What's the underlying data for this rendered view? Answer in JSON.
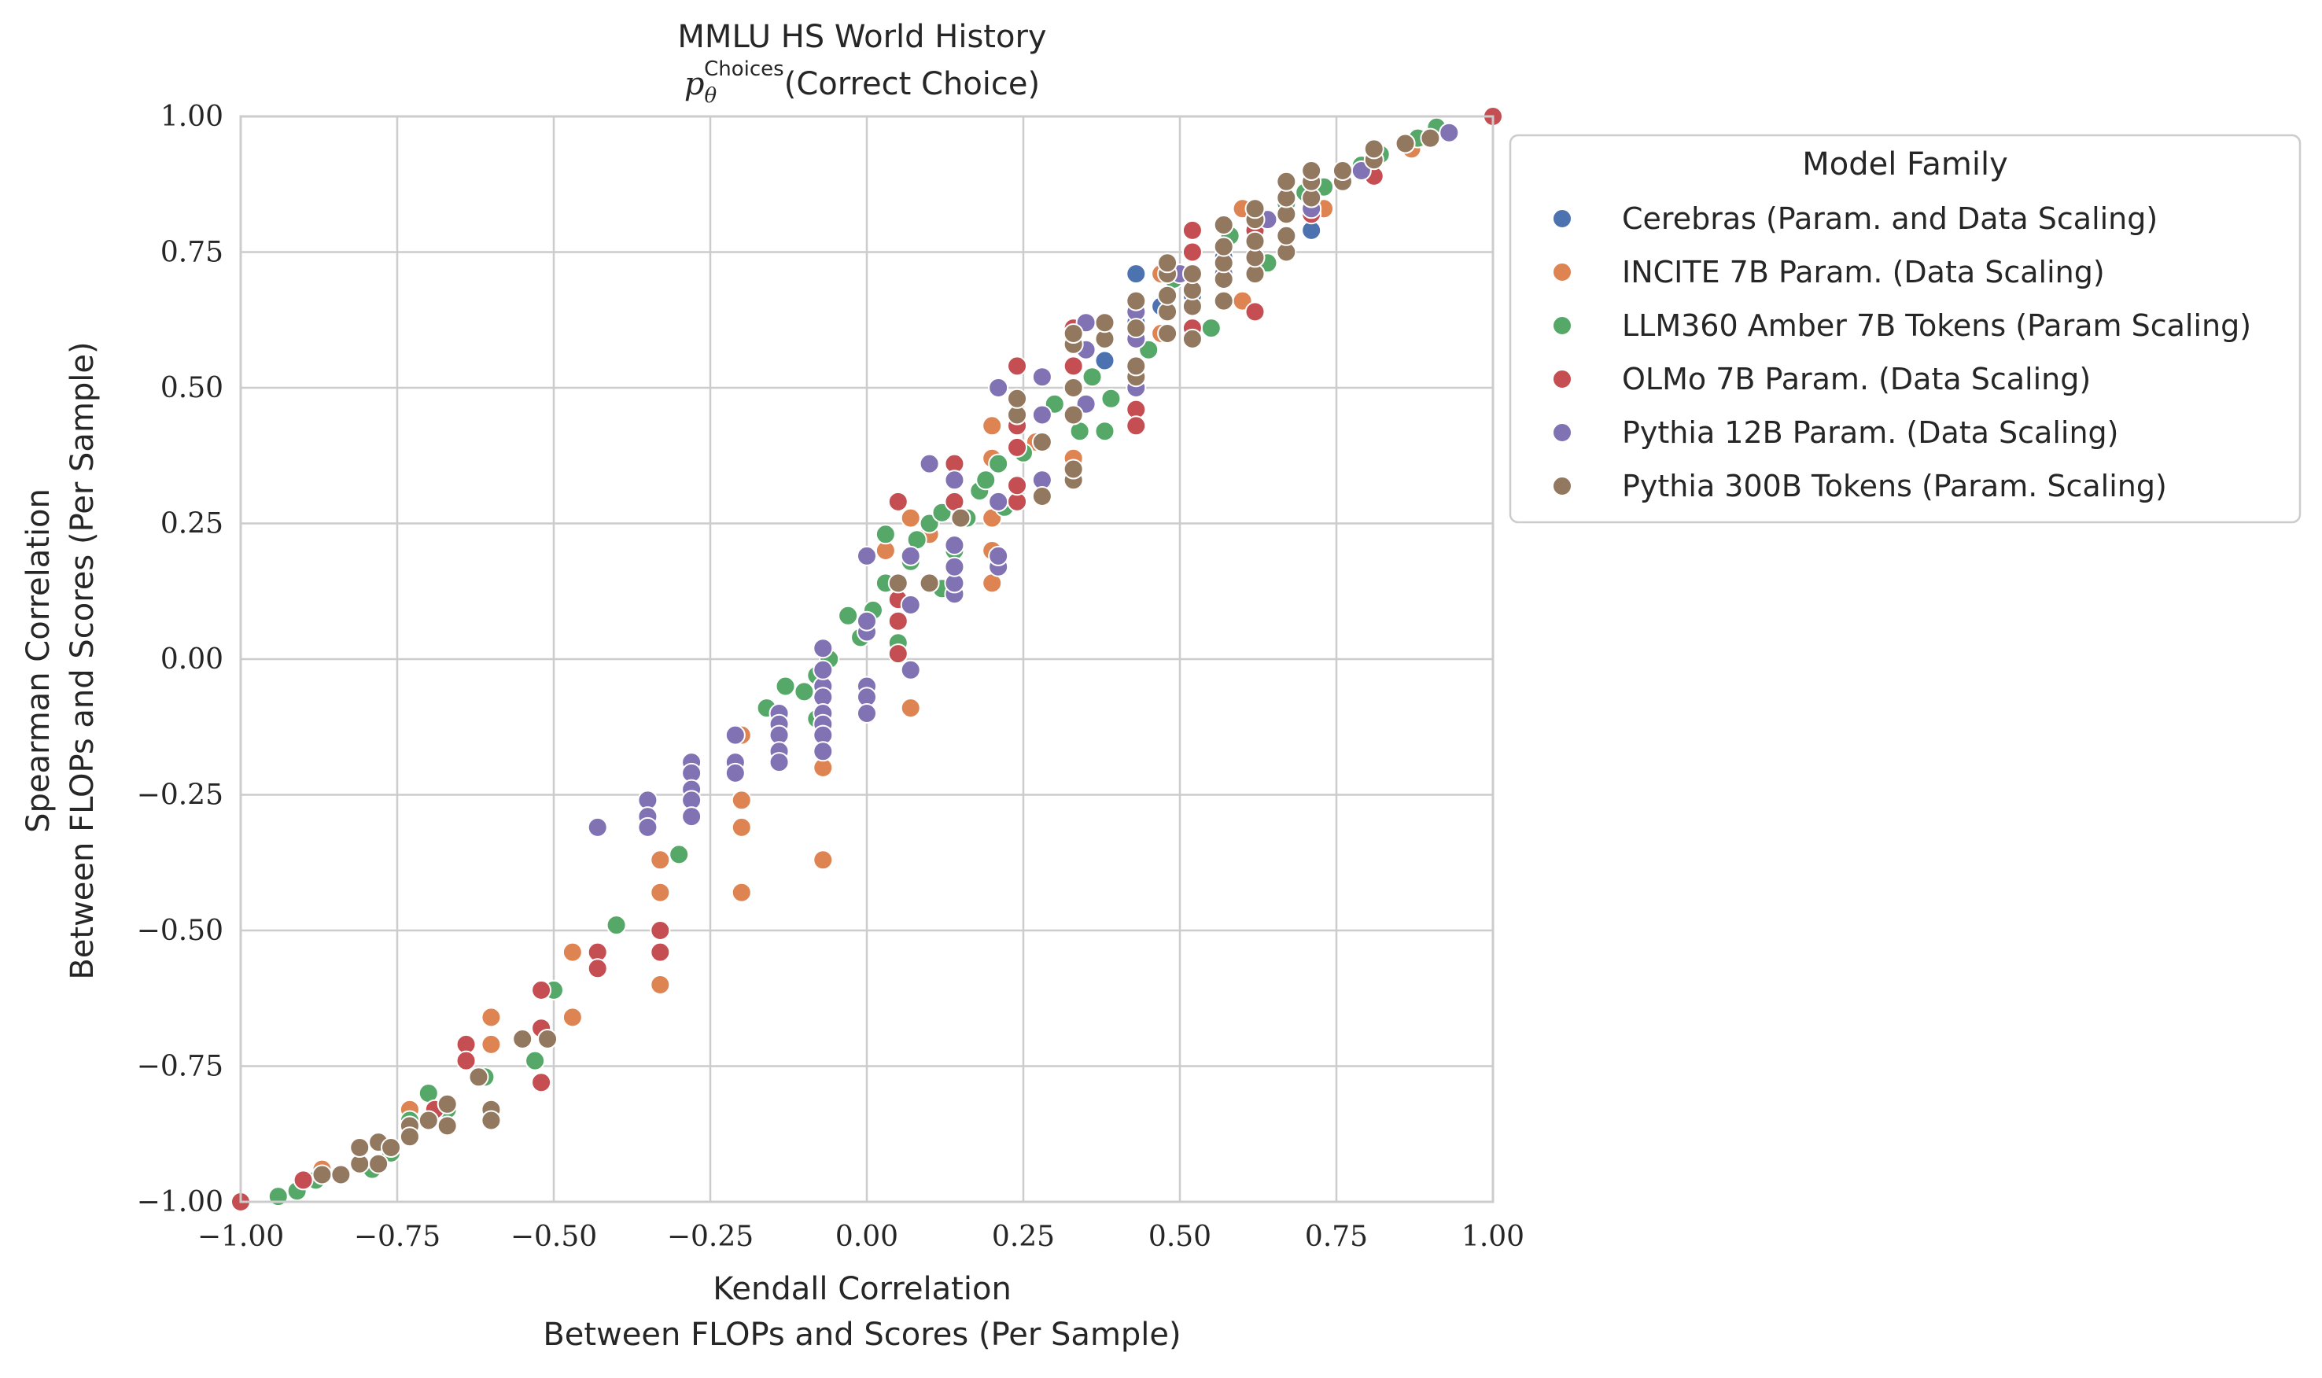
{
  "chart_data": {
    "type": "scatter",
    "title": "MMLU HS World History",
    "subtitle_math": "p",
    "subtitle_sub": "θ",
    "subtitle_sup": "Choices",
    "subtitle_text": "(Correct Choice)",
    "xlabel": [
      "Kendall Correlation",
      "Between FLOPs and Scores (Per Sample)"
    ],
    "ylabel": [
      "Spearman Correlation",
      "Between FLOPs and Scores (Per Sample)"
    ],
    "xlim": [
      -1.0,
      1.0
    ],
    "ylim": [
      -1.0,
      1.0
    ],
    "x_ticks": [
      -1.0,
      -0.75,
      -0.5,
      -0.25,
      0.0,
      0.25,
      0.5,
      0.75,
      1.0
    ],
    "y_ticks": [
      -1.0,
      -0.75,
      -0.5,
      -0.25,
      0.0,
      0.25,
      0.5,
      0.75,
      1.0
    ],
    "x_tick_labels": [
      "−1.00",
      "−0.75",
      "−0.50",
      "−0.25",
      "0.00",
      "0.25",
      "0.50",
      "0.75",
      "1.00"
    ],
    "y_tick_labels": [
      "−1.00",
      "−0.75",
      "−0.50",
      "−0.25",
      "0.00",
      "0.25",
      "0.50",
      "0.75",
      "1.00"
    ],
    "grid": true,
    "legend": {
      "title": "Model Family",
      "placement": "outside-right-top"
    },
    "series": [
      {
        "name": "Cerebras (Param. and Data Scaling)",
        "color": "#4c72b0",
        "points": [
          [
            0.43,
            0.71
          ],
          [
            0.71,
            0.79
          ],
          [
            0.47,
            0.65
          ],
          [
            0.57,
            0.74
          ],
          [
            0.62,
            0.8
          ],
          [
            0.43,
            0.62
          ],
          [
            0.52,
            0.67
          ],
          [
            0.67,
            0.83
          ],
          [
            0.38,
            0.55
          ],
          [
            0.76,
            0.88
          ]
        ]
      },
      {
        "name": "INCITE 7B Param. (Data Scaling)",
        "color": "#dd8452",
        "points": [
          [
            -0.6,
            -0.66
          ],
          [
            -0.6,
            -0.71
          ],
          [
            -0.47,
            -0.54
          ],
          [
            -0.47,
            -0.66
          ],
          [
            -0.33,
            -0.37
          ],
          [
            -0.33,
            -0.43
          ],
          [
            -0.33,
            -0.6
          ],
          [
            -0.2,
            -0.26
          ],
          [
            -0.2,
            -0.31
          ],
          [
            -0.2,
            -0.43
          ],
          [
            -0.2,
            -0.14
          ],
          [
            -0.07,
            -0.37
          ],
          [
            -0.07,
            -0.2
          ],
          [
            -0.07,
            -0.14
          ],
          [
            0.07,
            0.26
          ],
          [
            0.07,
            -0.09
          ],
          [
            0.2,
            0.14
          ],
          [
            0.2,
            0.2
          ],
          [
            0.2,
            0.26
          ],
          [
            0.2,
            0.37
          ],
          [
            0.2,
            0.43
          ],
          [
            0.33,
            0.37
          ],
          [
            0.33,
            0.54
          ],
          [
            0.47,
            0.6
          ],
          [
            0.47,
            0.71
          ],
          [
            0.6,
            0.66
          ],
          [
            0.6,
            0.83
          ],
          [
            0.73,
            0.83
          ],
          [
            0.87,
            0.94
          ],
          [
            -0.87,
            -0.94
          ],
          [
            -0.73,
            -0.83
          ],
          [
            0.03,
            0.2
          ],
          [
            0.1,
            0.23
          ],
          [
            0.27,
            0.4
          ]
        ]
      },
      {
        "name": "LLM360 Amber 7B Tokens (Param Scaling)",
        "color": "#55a868",
        "points": [
          [
            -0.94,
            -0.99
          ],
          [
            -0.91,
            -0.98
          ],
          [
            -0.88,
            -0.96
          ],
          [
            -0.79,
            -0.94
          ],
          [
            -0.76,
            -0.91
          ],
          [
            -0.73,
            -0.85
          ],
          [
            -0.7,
            -0.8
          ],
          [
            -0.67,
            -0.83
          ],
          [
            -0.61,
            -0.77
          ],
          [
            -0.53,
            -0.74
          ],
          [
            -0.5,
            -0.61
          ],
          [
            -0.4,
            -0.49
          ],
          [
            -0.3,
            -0.36
          ],
          [
            -0.16,
            -0.09
          ],
          [
            -0.13,
            -0.05
          ],
          [
            -0.1,
            -0.06
          ],
          [
            -0.08,
            -0.03
          ],
          [
            -0.08,
            -0.11
          ],
          [
            -0.06,
            0.0
          ],
          [
            -0.03,
            0.08
          ],
          [
            -0.01,
            0.04
          ],
          [
            0.01,
            0.09
          ],
          [
            0.03,
            0.14
          ],
          [
            0.03,
            0.23
          ],
          [
            0.05,
            0.03
          ],
          [
            0.07,
            0.18
          ],
          [
            0.08,
            0.22
          ],
          [
            0.1,
            0.25
          ],
          [
            0.12,
            0.27
          ],
          [
            0.12,
            0.13
          ],
          [
            0.14,
            0.2
          ],
          [
            0.16,
            0.26
          ],
          [
            0.18,
            0.31
          ],
          [
            0.19,
            0.33
          ],
          [
            0.21,
            0.36
          ],
          [
            0.22,
            0.28
          ],
          [
            0.25,
            0.38
          ],
          [
            0.3,
            0.47
          ],
          [
            0.34,
            0.42
          ],
          [
            0.36,
            0.52
          ],
          [
            0.38,
            0.42
          ],
          [
            0.39,
            0.48
          ],
          [
            0.45,
            0.57
          ],
          [
            0.49,
            0.7
          ],
          [
            0.55,
            0.61
          ],
          [
            0.58,
            0.78
          ],
          [
            0.64,
            0.73
          ],
          [
            0.67,
            0.84
          ],
          [
            0.7,
            0.86
          ],
          [
            0.73,
            0.87
          ],
          [
            0.76,
            0.89
          ],
          [
            0.79,
            0.91
          ],
          [
            0.82,
            0.93
          ],
          [
            0.88,
            0.96
          ],
          [
            0.91,
            0.98
          ],
          [
            0.93,
            0.97
          ],
          [
            0.43,
            0.66
          ]
        ]
      },
      {
        "name": "OLMo 7B Param. (Data Scaling)",
        "color": "#c44e52",
        "points": [
          [
            -1.0,
            -1.0
          ],
          [
            -0.9,
            -0.96
          ],
          [
            -0.64,
            -0.71
          ],
          [
            -0.64,
            -0.74
          ],
          [
            -0.52,
            -0.61
          ],
          [
            -0.52,
            -0.68
          ],
          [
            -0.52,
            -0.78
          ],
          [
            -0.43,
            -0.54
          ],
          [
            -0.43,
            -0.57
          ],
          [
            -0.33,
            -0.54
          ],
          [
            -0.33,
            -0.5
          ],
          [
            0.05,
            0.01
          ],
          [
            0.05,
            0.11
          ],
          [
            0.05,
            0.29
          ],
          [
            0.14,
            0.29
          ],
          [
            0.14,
            0.36
          ],
          [
            0.24,
            0.29
          ],
          [
            0.24,
            0.32
          ],
          [
            0.24,
            0.39
          ],
          [
            0.24,
            0.43
          ],
          [
            0.24,
            0.54
          ],
          [
            0.33,
            0.54
          ],
          [
            0.33,
            0.61
          ],
          [
            0.43,
            0.46
          ],
          [
            0.43,
            0.43
          ],
          [
            0.43,
            0.54
          ],
          [
            0.52,
            0.61
          ],
          [
            0.52,
            0.75
          ],
          [
            0.52,
            0.79
          ],
          [
            0.62,
            0.64
          ],
          [
            0.62,
            0.71
          ],
          [
            0.62,
            0.79
          ],
          [
            0.71,
            0.82
          ],
          [
            0.81,
            0.89
          ],
          [
            1.0,
            1.0
          ],
          [
            0.05,
            0.07
          ],
          [
            -0.69,
            -0.83
          ]
        ]
      },
      {
        "name": "Pythia 12B Param. (Data Scaling)",
        "color": "#8172b3",
        "points": [
          [
            -0.43,
            -0.31
          ],
          [
            -0.35,
            -0.26
          ],
          [
            -0.35,
            -0.29
          ],
          [
            -0.35,
            -0.31
          ],
          [
            -0.28,
            -0.19
          ],
          [
            -0.28,
            -0.21
          ],
          [
            -0.28,
            -0.24
          ],
          [
            -0.28,
            -0.26
          ],
          [
            -0.28,
            -0.29
          ],
          [
            -0.21,
            -0.14
          ],
          [
            -0.21,
            -0.19
          ],
          [
            -0.21,
            -0.21
          ],
          [
            -0.14,
            -0.1
          ],
          [
            -0.14,
            -0.12
          ],
          [
            -0.14,
            -0.14
          ],
          [
            -0.14,
            -0.17
          ],
          [
            -0.14,
            -0.19
          ],
          [
            -0.07,
            -0.05
          ],
          [
            -0.07,
            -0.07
          ],
          [
            -0.07,
            -0.1
          ],
          [
            -0.07,
            -0.12
          ],
          [
            -0.07,
            -0.14
          ],
          [
            -0.07,
            -0.17
          ],
          [
            -0.07,
            -0.02
          ],
          [
            -0.07,
            0.02
          ],
          [
            0.0,
            0.05
          ],
          [
            0.0,
            0.07
          ],
          [
            0.0,
            -0.05
          ],
          [
            0.0,
            -0.07
          ],
          [
            0.0,
            -0.1
          ],
          [
            0.0,
            0.19
          ],
          [
            0.07,
            0.1
          ],
          [
            0.07,
            0.19
          ],
          [
            0.07,
            -0.02
          ],
          [
            0.14,
            0.12
          ],
          [
            0.14,
            0.14
          ],
          [
            0.14,
            0.17
          ],
          [
            0.14,
            0.21
          ],
          [
            0.14,
            0.33
          ],
          [
            0.21,
            0.17
          ],
          [
            0.21,
            0.19
          ],
          [
            0.21,
            0.29
          ],
          [
            0.21,
            0.5
          ],
          [
            0.28,
            0.33
          ],
          [
            0.28,
            0.45
          ],
          [
            0.28,
            0.52
          ],
          [
            0.35,
            0.47
          ],
          [
            0.35,
            0.57
          ],
          [
            0.35,
            0.62
          ],
          [
            0.43,
            0.5
          ],
          [
            0.43,
            0.59
          ],
          [
            0.43,
            0.64
          ],
          [
            0.5,
            0.71
          ],
          [
            0.57,
            0.71
          ],
          [
            0.57,
            0.76
          ],
          [
            0.64,
            0.81
          ],
          [
            0.71,
            0.83
          ],
          [
            0.79,
            0.9
          ],
          [
            0.86,
            0.95
          ],
          [
            0.93,
            0.97
          ],
          [
            0.1,
            0.36
          ]
        ]
      },
      {
        "name": "Pythia 300B Tokens (Param. Scaling)",
        "color": "#937860",
        "points": [
          [
            -0.87,
            -0.95
          ],
          [
            -0.84,
            -0.95
          ],
          [
            -0.81,
            -0.93
          ],
          [
            -0.81,
            -0.9
          ],
          [
            -0.78,
            -0.93
          ],
          [
            -0.78,
            -0.89
          ],
          [
            -0.76,
            -0.9
          ],
          [
            -0.73,
            -0.86
          ],
          [
            -0.73,
            -0.88
          ],
          [
            -0.7,
            -0.85
          ],
          [
            -0.67,
            -0.82
          ],
          [
            -0.67,
            -0.86
          ],
          [
            -0.62,
            -0.77
          ],
          [
            -0.6,
            -0.83
          ],
          [
            -0.6,
            -0.85
          ],
          [
            -0.55,
            -0.7
          ],
          [
            -0.51,
            -0.7
          ],
          [
            0.05,
            0.14
          ],
          [
            0.1,
            0.14
          ],
          [
            0.15,
            0.26
          ],
          [
            0.28,
            0.3
          ],
          [
            0.28,
            0.4
          ],
          [
            0.33,
            0.33
          ],
          [
            0.33,
            0.35
          ],
          [
            0.33,
            0.45
          ],
          [
            0.33,
            0.5
          ],
          [
            0.33,
            0.58
          ],
          [
            0.33,
            0.6
          ],
          [
            0.38,
            0.59
          ],
          [
            0.38,
            0.62
          ],
          [
            0.43,
            0.52
          ],
          [
            0.43,
            0.54
          ],
          [
            0.43,
            0.61
          ],
          [
            0.43,
            0.66
          ],
          [
            0.48,
            0.6
          ],
          [
            0.48,
            0.64
          ],
          [
            0.48,
            0.67
          ],
          [
            0.48,
            0.71
          ],
          [
            0.48,
            0.73
          ],
          [
            0.52,
            0.59
          ],
          [
            0.52,
            0.65
          ],
          [
            0.52,
            0.68
          ],
          [
            0.52,
            0.71
          ],
          [
            0.57,
            0.66
          ],
          [
            0.57,
            0.7
          ],
          [
            0.57,
            0.73
          ],
          [
            0.57,
            0.76
          ],
          [
            0.57,
            0.8
          ],
          [
            0.62,
            0.71
          ],
          [
            0.62,
            0.74
          ],
          [
            0.62,
            0.77
          ],
          [
            0.62,
            0.81
          ],
          [
            0.62,
            0.83
          ],
          [
            0.67,
            0.75
          ],
          [
            0.67,
            0.78
          ],
          [
            0.67,
            0.82
          ],
          [
            0.67,
            0.85
          ],
          [
            0.67,
            0.88
          ],
          [
            0.71,
            0.85
          ],
          [
            0.71,
            0.88
          ],
          [
            0.71,
            0.9
          ],
          [
            0.76,
            0.88
          ],
          [
            0.76,
            0.9
          ],
          [
            0.81,
            0.92
          ],
          [
            0.81,
            0.94
          ],
          [
            0.86,
            0.95
          ],
          [
            0.9,
            0.96
          ],
          [
            0.24,
            0.45
          ],
          [
            0.24,
            0.48
          ]
        ]
      }
    ]
  }
}
